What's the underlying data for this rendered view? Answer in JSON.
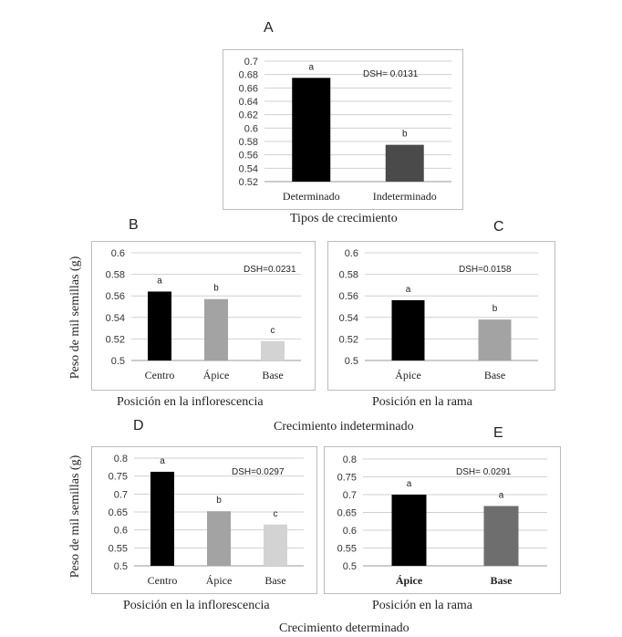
{
  "figure": {
    "y_axis_title": "Peso de mil semillas (g)",
    "indeterminate_caption": "Crecimiento indeterminado",
    "determinate_caption": "Crecimiento determinado"
  },
  "chart_data": [
    {
      "panel": "A",
      "type": "bar",
      "xlabel": "Tipos de crecimiento",
      "categories": [
        "Determinado",
        "Indeterminado"
      ],
      "values": [
        0.675,
        0.575
      ],
      "bar_colors": [
        "#000000",
        "#4a4a4a"
      ],
      "letters": [
        "a",
        "b"
      ],
      "ylim": [
        0.52,
        0.7
      ],
      "yticks": [
        "0.7",
        "0.68",
        "0.66",
        "0.64",
        "0.62",
        "0.6",
        "0.58",
        "0.56",
        "0.54",
        "0.52"
      ],
      "annotation": "DSH= 0.0131",
      "grid": true
    },
    {
      "panel": "B",
      "type": "bar",
      "xlabel": "Posición en la inflorescencia",
      "categories": [
        "Centro",
        "Ápice",
        "Base"
      ],
      "values": [
        0.564,
        0.557,
        0.518
      ],
      "bar_colors": [
        "#000000",
        "#a3a3a3",
        "#d3d3d3"
      ],
      "letters": [
        "a",
        "b",
        "c"
      ],
      "ylim": [
        0.5,
        0.6
      ],
      "yticks": [
        "0.6",
        "0.58",
        "0.56",
        "0.54",
        "0.52",
        "0.5"
      ],
      "annotation": "DSH=0.0231",
      "grid": true
    },
    {
      "panel": "C",
      "type": "bar",
      "xlabel": "Posición en la rama",
      "categories": [
        "Ápice",
        "Base"
      ],
      "values": [
        0.556,
        0.538
      ],
      "bar_colors": [
        "#000000",
        "#a3a3a3"
      ],
      "letters": [
        "a",
        "b"
      ],
      "ylim": [
        0.5,
        0.6
      ],
      "yticks": [
        "0.6",
        "0.58",
        "0.56",
        "0.54",
        "0.52",
        "0.5"
      ],
      "annotation": "DSH=0.0158",
      "grid": true
    },
    {
      "panel": "D",
      "type": "bar",
      "xlabel": "Posición en la inflorescencia",
      "categories": [
        "Centro",
        "Ápice",
        "Base"
      ],
      "values": [
        0.762,
        0.652,
        0.615
      ],
      "bar_colors": [
        "#000000",
        "#a3a3a3",
        "#d3d3d3"
      ],
      "letters": [
        "a",
        "b",
        "c"
      ],
      "ylim": [
        0.5,
        0.8
      ],
      "yticks": [
        "0.8",
        "0.75",
        "0.7",
        "0.65",
        "0.6",
        "0.55",
        "0.5"
      ],
      "annotation": "DSH=0.0297",
      "grid": true
    },
    {
      "panel": "E",
      "type": "bar",
      "xlabel": "Posición en la rama",
      "categories": [
        "Ápice",
        "Base"
      ],
      "values": [
        0.7,
        0.668
      ],
      "bar_colors": [
        "#000000",
        "#6e6e6e"
      ],
      "letters": [
        "a",
        "a"
      ],
      "ylim": [
        0.5,
        0.8
      ],
      "yticks": [
        "0.8",
        "0.75",
        "0.7",
        "0.65",
        "0.6",
        "0.55",
        "0.5"
      ],
      "annotation": "DSH= 0.0291",
      "grid": true
    }
  ]
}
